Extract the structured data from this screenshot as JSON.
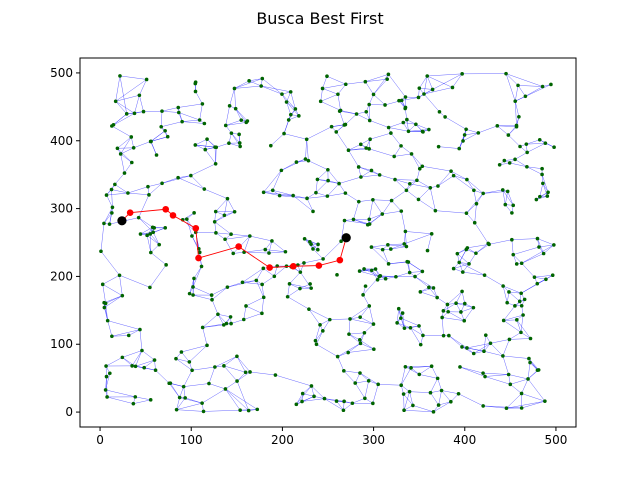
{
  "chart_data": {
    "type": "scatter",
    "title": "Busca Best First",
    "xlabel": "",
    "ylabel": "",
    "xlim": [
      -22,
      522
    ],
    "ylim": [
      -22,
      522
    ],
    "xticks": [
      0,
      100,
      200,
      300,
      400,
      500
    ],
    "yticks": [
      0,
      100,
      200,
      300,
      400,
      500
    ],
    "grid": false,
    "legend": "none",
    "colors": {
      "graph_edges": "#0000ff",
      "nodes": "#006400",
      "path": "#ff0000",
      "endpoints": "#000000"
    },
    "series": [
      {
        "kind": "path",
        "values": [
          [
            24,
            282
          ],
          [
            33,
            294
          ],
          [
            72,
            299
          ],
          [
            80,
            290
          ],
          [
            105,
            271
          ],
          [
            108,
            227
          ],
          [
            152,
            244
          ],
          [
            186,
            213
          ],
          [
            212,
            215
          ],
          [
            240,
            216
          ],
          [
            263,
            224
          ],
          [
            270,
            257
          ]
        ]
      },
      {
        "kind": "endpoints",
        "values": [
          [
            24,
            282
          ],
          [
            270,
            257
          ]
        ]
      }
    ]
  }
}
